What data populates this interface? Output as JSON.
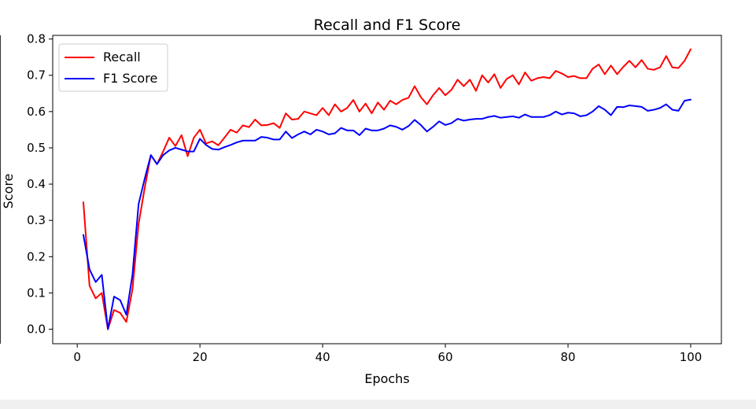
{
  "chart_data": {
    "type": "line",
    "title": "Recall and F1 Score",
    "xlabel": "Epochs",
    "ylabel": "Score",
    "xlim": [
      -4,
      105
    ],
    "ylim": [
      -0.04,
      0.81
    ],
    "xticks": [
      0,
      20,
      40,
      60,
      80,
      100
    ],
    "yticks": [
      0.0,
      0.1,
      0.2,
      0.3,
      0.4,
      0.5,
      0.6,
      0.7,
      0.8
    ],
    "xtick_labels": [
      "0",
      "20",
      "40",
      "60",
      "80",
      "100"
    ],
    "ytick_labels": [
      "0.0",
      "0.1",
      "0.2",
      "0.3",
      "0.4",
      "0.5",
      "0.6",
      "0.7",
      "0.8"
    ],
    "grid": false,
    "legend_position": "top-left",
    "x": [
      1,
      2,
      3,
      4,
      5,
      6,
      7,
      8,
      9,
      10,
      11,
      12,
      13,
      14,
      15,
      16,
      17,
      18,
      19,
      20,
      21,
      22,
      23,
      24,
      25,
      26,
      27,
      28,
      29,
      30,
      31,
      32,
      33,
      34,
      35,
      36,
      37,
      38,
      39,
      40,
      41,
      42,
      43,
      44,
      45,
      46,
      47,
      48,
      49,
      50,
      51,
      52,
      53,
      54,
      55,
      56,
      57,
      58,
      59,
      60,
      61,
      62,
      63,
      64,
      65,
      66,
      67,
      68,
      69,
      70,
      71,
      72,
      73,
      74,
      75,
      76,
      77,
      78,
      79,
      80,
      81,
      82,
      83,
      84,
      85,
      86,
      87,
      88,
      89,
      90,
      91,
      92,
      93,
      94,
      95,
      96,
      97,
      98,
      99,
      100
    ],
    "series": [
      {
        "name": "Recall",
        "color": "#ff0000",
        "values": [
          0.35,
          0.12,
          0.085,
          0.1,
          0.0,
          0.053,
          0.045,
          0.02,
          0.11,
          0.29,
          0.39,
          0.48,
          0.455,
          0.49,
          0.528,
          0.505,
          0.535,
          0.477,
          0.528,
          0.55,
          0.512,
          0.518,
          0.507,
          0.528,
          0.55,
          0.542,
          0.562,
          0.557,
          0.578,
          0.562,
          0.563,
          0.568,
          0.555,
          0.595,
          0.578,
          0.58,
          0.6,
          0.595,
          0.59,
          0.61,
          0.59,
          0.62,
          0.6,
          0.61,
          0.632,
          0.6,
          0.622,
          0.595,
          0.625,
          0.605,
          0.63,
          0.62,
          0.632,
          0.638,
          0.67,
          0.64,
          0.62,
          0.645,
          0.665,
          0.645,
          0.66,
          0.688,
          0.67,
          0.688,
          0.657,
          0.7,
          0.68,
          0.703,
          0.665,
          0.69,
          0.7,
          0.675,
          0.708,
          0.685,
          0.692,
          0.695,
          0.692,
          0.712,
          0.705,
          0.695,
          0.698,
          0.692,
          0.692,
          0.718,
          0.73,
          0.703,
          0.727,
          0.703,
          0.723,
          0.74,
          0.722,
          0.742,
          0.718,
          0.715,
          0.722,
          0.753,
          0.722,
          0.72,
          0.74,
          0.772
        ]
      },
      {
        "name": "F1 Score",
        "color": "#0000ff",
        "values": [
          0.26,
          0.165,
          0.13,
          0.15,
          0.0,
          0.09,
          0.08,
          0.04,
          0.15,
          0.345,
          0.415,
          0.48,
          0.455,
          0.48,
          0.493,
          0.5,
          0.495,
          0.49,
          0.49,
          0.525,
          0.508,
          0.497,
          0.495,
          0.502,
          0.508,
          0.515,
          0.52,
          0.52,
          0.52,
          0.53,
          0.528,
          0.523,
          0.523,
          0.545,
          0.527,
          0.537,
          0.545,
          0.537,
          0.55,
          0.545,
          0.537,
          0.54,
          0.555,
          0.548,
          0.548,
          0.535,
          0.553,
          0.548,
          0.548,
          0.553,
          0.562,
          0.558,
          0.55,
          0.56,
          0.577,
          0.563,
          0.545,
          0.558,
          0.573,
          0.563,
          0.568,
          0.58,
          0.575,
          0.578,
          0.58,
          0.58,
          0.585,
          0.588,
          0.583,
          0.585,
          0.587,
          0.583,
          0.592,
          0.585,
          0.585,
          0.585,
          0.59,
          0.6,
          0.592,
          0.597,
          0.595,
          0.587,
          0.59,
          0.6,
          0.615,
          0.605,
          0.59,
          0.613,
          0.612,
          0.617,
          0.615,
          0.613,
          0.602,
          0.605,
          0.61,
          0.62,
          0.605,
          0.602,
          0.63,
          0.633
        ]
      }
    ]
  }
}
